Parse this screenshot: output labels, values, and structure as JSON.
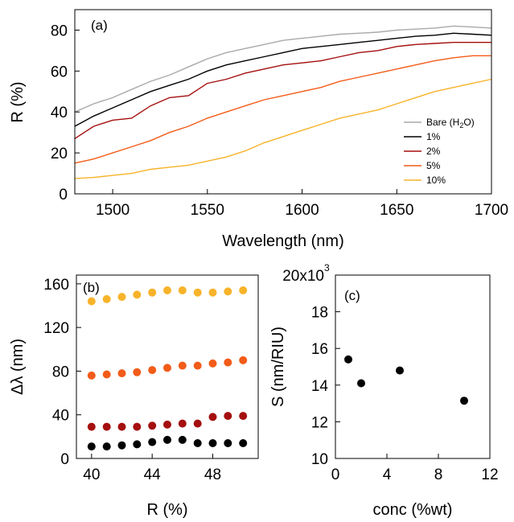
{
  "chart_data": [
    {
      "panel_label": "(a)",
      "type": "line",
      "xlabel": "Wavelength (nm)",
      "ylabel": "R (%)",
      "xlim": [
        1480,
        1700
      ],
      "ylim": [
        0,
        90
      ],
      "xticks": [
        1500,
        1550,
        1600,
        1650,
        1700
      ],
      "yticks": [
        0,
        20,
        40,
        60,
        80
      ],
      "grid": false,
      "legend_placement": "right",
      "series": [
        {
          "name": "Bare (H2O)",
          "color": "#a9a9a9",
          "x": [
            1480,
            1490,
            1500,
            1510,
            1520,
            1530,
            1540,
            1550,
            1560,
            1570,
            1580,
            1590,
            1600,
            1610,
            1620,
            1630,
            1640,
            1650,
            1660,
            1670,
            1680,
            1690,
            1700
          ],
          "y": [
            40,
            44,
            47,
            51,
            55,
            58,
            62,
            66,
            69,
            71,
            73,
            75,
            76,
            77,
            78,
            78.5,
            79,
            80,
            80.5,
            81,
            82,
            81.5,
            81
          ]
        },
        {
          "name": "1%",
          "color": "#000000",
          "x": [
            1480,
            1490,
            1500,
            1510,
            1520,
            1530,
            1540,
            1550,
            1560,
            1570,
            1580,
            1590,
            1600,
            1610,
            1620,
            1630,
            1640,
            1650,
            1660,
            1670,
            1680,
            1690,
            1700
          ],
          "y": [
            33,
            38,
            42,
            46,
            50,
            53,
            56,
            60,
            63,
            65,
            67,
            69,
            71,
            72,
            73,
            74,
            75,
            76,
            77,
            77.5,
            78.5,
            78,
            77.5
          ]
        },
        {
          "name": "2%",
          "color": "#a50f0f",
          "x": [
            1480,
            1490,
            1500,
            1510,
            1520,
            1530,
            1540,
            1550,
            1560,
            1570,
            1580,
            1590,
            1600,
            1610,
            1620,
            1630,
            1640,
            1650,
            1660,
            1670,
            1680,
            1690,
            1700
          ],
          "y": [
            27,
            33,
            36,
            37,
            43,
            47,
            48,
            54,
            56,
            59,
            61,
            63,
            64,
            65,
            67,
            69,
            70,
            72,
            73,
            73.5,
            74,
            74,
            74
          ]
        },
        {
          "name": "5%",
          "color": "#f25c19",
          "x": [
            1480,
            1490,
            1500,
            1510,
            1520,
            1530,
            1540,
            1550,
            1560,
            1570,
            1580,
            1590,
            1600,
            1610,
            1620,
            1630,
            1640,
            1650,
            1660,
            1670,
            1680,
            1690,
            1700
          ],
          "y": [
            15,
            17,
            20,
            23,
            26,
            30,
            33,
            37,
            40,
            43,
            46,
            48,
            50,
            52,
            55,
            57,
            59,
            61,
            63,
            65,
            66.5,
            67.5,
            67.5
          ]
        },
        {
          "name": "10%",
          "color": "#f7b32a",
          "x": [
            1480,
            1490,
            1500,
            1510,
            1520,
            1530,
            1540,
            1550,
            1560,
            1570,
            1580,
            1590,
            1600,
            1610,
            1620,
            1630,
            1640,
            1650,
            1660,
            1670,
            1680,
            1690,
            1700
          ],
          "y": [
            7.5,
            8,
            9,
            10,
            12,
            13,
            14,
            16,
            18,
            21,
            25,
            28,
            31,
            34,
            37,
            39,
            41,
            44,
            47,
            50,
            52,
            54,
            56
          ]
        }
      ]
    },
    {
      "panel_label": "(b)",
      "type": "scatter",
      "xlabel": "R (%)",
      "ylabel": "Δλ (nm)",
      "xlim": [
        39,
        51
      ],
      "ylim": [
        0,
        168
      ],
      "xticks": [
        40,
        44,
        48
      ],
      "yticks": [
        0,
        40,
        80,
        120,
        160
      ],
      "grid": false,
      "series": [
        {
          "color": "#000000",
          "x": [
            40,
            41,
            42,
            43,
            44,
            45,
            46,
            47,
            48,
            49,
            50
          ],
          "y": [
            11,
            11,
            12,
            13,
            15,
            17,
            17,
            14,
            14,
            14,
            14
          ]
        },
        {
          "color": "#a50f0f",
          "x": [
            40,
            41,
            42,
            43,
            44,
            45,
            46,
            47,
            48,
            49,
            50
          ],
          "y": [
            29,
            29,
            29,
            29,
            30,
            31,
            32,
            32,
            38,
            39,
            39
          ]
        },
        {
          "color": "#f25c19",
          "x": [
            40,
            41,
            42,
            43,
            44,
            45,
            46,
            47,
            48,
            49,
            50
          ],
          "y": [
            76,
            77,
            78,
            79,
            81,
            83,
            85,
            85,
            87,
            88,
            90
          ]
        },
        {
          "color": "#f7b32a",
          "x": [
            40,
            41,
            42,
            43,
            44,
            45,
            46,
            47,
            48,
            49,
            50
          ],
          "y": [
            144,
            146,
            148,
            150,
            152,
            154,
            154,
            152,
            152,
            153,
            154
          ]
        }
      ]
    },
    {
      "panel_label": "(c)",
      "type": "scatter",
      "xlabel": "conc (%wt)",
      "ylabel": "S (nm/RIU)",
      "xlim": [
        0,
        12
      ],
      "ylim": [
        10,
        20
      ],
      "xticks": [
        0,
        4,
        8,
        12
      ],
      "yticks": [
        10,
        12,
        14,
        16,
        18
      ],
      "y_top_label": "20x10",
      "y_top_exponent": "3",
      "grid": false,
      "series": [
        {
          "color": "#000000",
          "x": [
            1,
            2,
            5,
            10
          ],
          "y": [
            15.4,
            14.1,
            14.8,
            13.15
          ]
        }
      ]
    }
  ]
}
